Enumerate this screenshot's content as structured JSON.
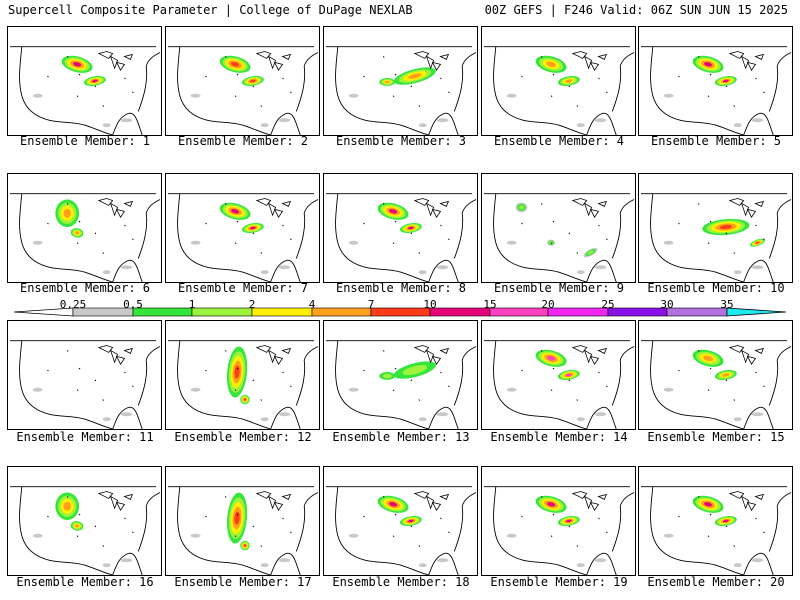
{
  "header": {
    "left": "Supercell Composite Parameter | College of DuPage NEXLAB",
    "right": "00Z GEFS | F246 Valid: 06Z SUN JUN 15 2025"
  },
  "panels": [
    {
      "label": "Ensemble Member: 1",
      "intensity": [
        0.5,
        1,
        2,
        4,
        10
      ],
      "focus": "upper-midwest"
    },
    {
      "label": "Ensemble Member: 2",
      "intensity": [
        0.5,
        1,
        2,
        4,
        7
      ],
      "focus": "upper-midwest"
    },
    {
      "label": "Ensemble Member: 3",
      "intensity": [
        0.5,
        1,
        2,
        4
      ],
      "focus": "great-lakes"
    },
    {
      "label": "Ensemble Member: 4",
      "intensity": [
        0.5,
        1,
        2,
        4
      ],
      "focus": "upper-midwest"
    },
    {
      "label": "Ensemble Member: 5",
      "intensity": [
        0.5,
        1,
        2,
        4,
        10
      ],
      "focus": "upper-midwest"
    },
    {
      "label": "Ensemble Member: 6",
      "intensity": [
        0.5,
        1,
        2,
        4
      ],
      "focus": "northern-plains"
    },
    {
      "label": "Ensemble Member: 7",
      "intensity": [
        0.5,
        1,
        2,
        4,
        10
      ],
      "focus": "upper-midwest"
    },
    {
      "label": "Ensemble Member: 8",
      "intensity": [
        0.5,
        1,
        2,
        4,
        10
      ],
      "focus": "upper-midwest"
    },
    {
      "label": "Ensemble Member: 9",
      "intensity": [
        0.25,
        0.5,
        1
      ],
      "focus": "scattered"
    },
    {
      "label": "Ensemble Member: 10",
      "intensity": [
        0.5,
        1,
        2,
        4,
        7
      ],
      "focus": "ohio-valley"
    },
    {
      "label": "Ensemble Member: 11",
      "intensity": [
        0.25
      ],
      "focus": "none"
    },
    {
      "label": "Ensemble Member: 12",
      "intensity": [
        0.5,
        1,
        2,
        4,
        7
      ],
      "focus": "central-plains"
    },
    {
      "label": "Ensemble Member: 13",
      "intensity": [
        0.5,
        1
      ],
      "focus": "great-lakes"
    },
    {
      "label": "Ensemble Member: 14",
      "intensity": [
        0.5,
        1,
        2,
        4,
        15
      ],
      "focus": "upper-midwest"
    },
    {
      "label": "Ensemble Member: 15",
      "intensity": [
        0.5,
        1,
        2,
        4
      ],
      "focus": "upper-midwest"
    },
    {
      "label": "Ensemble Member: 16",
      "intensity": [
        0.5,
        1,
        2,
        4
      ],
      "focus": "northern-plains"
    },
    {
      "label": "Ensemble Member: 17",
      "intensity": [
        0.5,
        1,
        2,
        4,
        7
      ],
      "focus": "central-plains"
    },
    {
      "label": "Ensemble Member: 18",
      "intensity": [
        0.5,
        1,
        2,
        4,
        10
      ],
      "focus": "upper-midwest"
    },
    {
      "label": "Ensemble Member: 19",
      "intensity": [
        0.5,
        1,
        2,
        4,
        10
      ],
      "focus": "upper-midwest"
    },
    {
      "label": "Ensemble Member: 20",
      "intensity": [
        0.5,
        1,
        2,
        4,
        10
      ],
      "focus": "upper-midwest"
    }
  ],
  "legend": {
    "ticks": [
      "0.25",
      "0.5",
      "1",
      "2",
      "4",
      "7",
      "10",
      "15",
      "20",
      "25",
      "30",
      "35"
    ],
    "bins": [
      {
        "from": "0.25",
        "to": "0.5",
        "color": "#c8c8c8"
      },
      {
        "from": "0.5",
        "to": "1",
        "color": "#35e63a"
      },
      {
        "from": "1",
        "to": "2",
        "color": "#9cf23c"
      },
      {
        "from": "2",
        "to": "4",
        "color": "#fff000"
      },
      {
        "from": "4",
        "to": "7",
        "color": "#ff9f1c"
      },
      {
        "from": "7",
        "to": "10",
        "color": "#ff3b1a"
      },
      {
        "from": "10",
        "to": "15",
        "color": "#e6007a"
      },
      {
        "from": "15",
        "to": "20",
        "color": "#ff40c0"
      },
      {
        "from": "20",
        "to": "25",
        "color": "#ee28ee"
      },
      {
        "from": "25",
        "to": "30",
        "color": "#8a10e8"
      },
      {
        "from": "30",
        "to": "35",
        "color": "#b070e0"
      },
      {
        "from": "35",
        "to": "",
        "color": "#20e8f0"
      }
    ]
  }
}
